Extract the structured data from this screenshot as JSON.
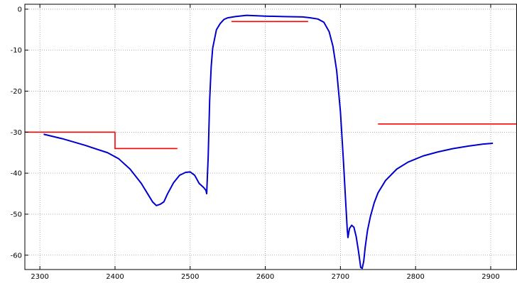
{
  "chart_data": {
    "type": "line",
    "title": "",
    "xlabel": "",
    "ylabel": "",
    "xlim": [
      2280,
      2935
    ],
    "ylim": [
      -63.5,
      1.2
    ],
    "grid": true,
    "x_ticks": [
      2300,
      2400,
      2500,
      2600,
      2700,
      2800,
      2900
    ],
    "y_ticks": [
      0,
      -10,
      -20,
      -30,
      -40,
      -50,
      -60
    ],
    "x_tick_labels": [
      "2300",
      "2400",
      "2500",
      "2600",
      "2700",
      "2800",
      "2900"
    ],
    "y_tick_labels": [
      "0",
      "-10",
      "-20",
      "-30",
      "-40",
      "-50",
      "-60"
    ],
    "series": [
      {
        "color": "#0000cc",
        "x": [
          2305,
          2330,
          2360,
          2390,
          2405,
          2420,
          2435,
          2445,
          2450,
          2455,
          2460,
          2465,
          2470,
          2478,
          2486,
          2494,
          2500,
          2506,
          2512,
          2518,
          2521,
          2522,
          2524,
          2526,
          2528,
          2530,
          2535,
          2540,
          2545,
          2550,
          2560,
          2575,
          2600,
          2625,
          2650,
          2660,
          2670,
          2678,
          2685,
          2690,
          2695,
          2700,
          2704,
          2707,
          2709,
          2710,
          2712,
          2715,
          2718,
          2721,
          2724,
          2727,
          2729,
          2731,
          2733,
          2736,
          2740,
          2745,
          2750,
          2760,
          2775,
          2790,
          2810,
          2830,
          2850,
          2870,
          2890,
          2903
        ],
        "y": [
          -30.5,
          -31.6,
          -33.2,
          -35.0,
          -36.5,
          -39.0,
          -42.5,
          -45.5,
          -47.0,
          -47.9,
          -47.6,
          -47.0,
          -45.0,
          -42.3,
          -40.5,
          -39.8,
          -39.7,
          -40.5,
          -42.5,
          -43.5,
          -44.2,
          -45.0,
          -36.0,
          -22.0,
          -14.0,
          -9.5,
          -5.0,
          -3.5,
          -2.5,
          -2.1,
          -1.8,
          -1.5,
          -1.7,
          -1.8,
          -1.9,
          -2.1,
          -2.4,
          -3.2,
          -5.5,
          -9.0,
          -15.0,
          -25.0,
          -37.0,
          -47.0,
          -53.5,
          -55.7,
          -53.5,
          -52.7,
          -53.2,
          -55.5,
          -59.0,
          -63.0,
          -63.2,
          -61.5,
          -58.0,
          -54.0,
          -50.5,
          -47.2,
          -44.8,
          -41.8,
          -39.0,
          -37.3,
          -35.8,
          -34.8,
          -34.0,
          -33.4,
          -32.9,
          -32.7
        ]
      },
      {
        "color": "#ff0000",
        "x": [
          2280,
          2400,
          2400,
          2483
        ],
        "y": [
          -30,
          -30,
          -34,
          -34
        ]
      },
      {
        "color": "#ff0000",
        "x": [
          2555,
          2657
        ],
        "y": [
          -3,
          -3
        ]
      },
      {
        "color": "#ff0000",
        "x": [
          2750,
          2935
        ],
        "y": [
          -28,
          -28
        ]
      }
    ]
  }
}
